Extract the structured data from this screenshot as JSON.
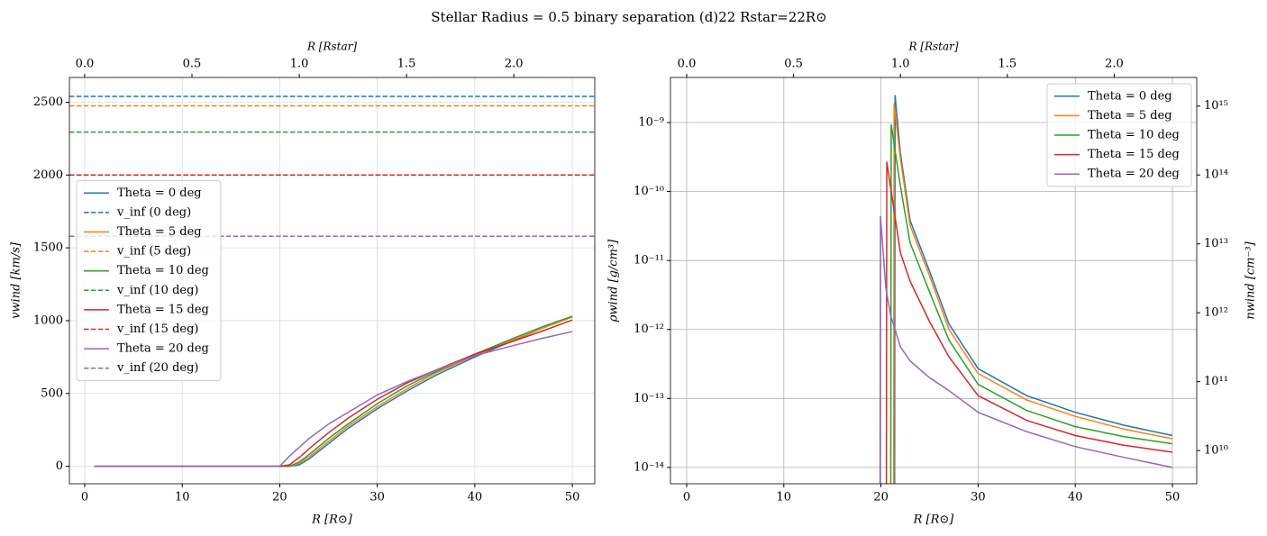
{
  "title": "Stellar Radius = 0.5 binary separation (d)22  Rstar=22R⊙",
  "chart_data": [
    {
      "type": "line",
      "xlabel": "R [R⊙]",
      "ylabel": "vwind [km/s]",
      "x2label": "R [Rstar]",
      "xlim": [
        -1.57,
        52.3
      ],
      "ylim": [
        -120,
        2670
      ],
      "x2lim": [
        -0.071,
        2.377
      ],
      "xticks": [
        0,
        10,
        20,
        30,
        40,
        50
      ],
      "yticks": [
        0,
        500,
        1000,
        1500,
        2000,
        2500
      ],
      "x2ticks": [
        {
          "value": 0,
          "label": "0.0"
        },
        0.5,
        {
          "value": 1,
          "label": "1.0"
        },
        1.5,
        {
          "value": 2,
          "label": "2.0"
        }
      ],
      "grid": true,
      "legend": "center left",
      "x": [
        1,
        20,
        21,
        22,
        23,
        25,
        27,
        30,
        33,
        36,
        40,
        44,
        47,
        50
      ],
      "series": [
        {
          "name": "Theta = 0 deg",
          "color": "#1f77b4",
          "values": [
            0,
            0,
            0,
            10,
            50,
            155,
            260,
            395,
            515,
            625,
            750,
            865,
            950,
            1030
          ]
        },
        {
          "name": "v_inf (0 deg)",
          "color": "#1f77b4",
          "linestyle": "dashed",
          "hline": 2540
        },
        {
          "name": "Theta = 5 deg",
          "color": "#ff7f0e",
          "values": [
            0,
            0,
            0,
            20,
            65,
            170,
            275,
            410,
            530,
            640,
            760,
            870,
            950,
            1025
          ]
        },
        {
          "name": "v_inf (5 deg)",
          "color": "#ff7f0e",
          "linestyle": "dashed",
          "hline": 2475
        },
        {
          "name": "Theta = 10 deg",
          "color": "#2ca02c",
          "values": [
            0,
            0,
            0,
            30,
            80,
            190,
            290,
            430,
            550,
            650,
            770,
            880,
            960,
            1030
          ]
        },
        {
          "name": "v_inf (10 deg)",
          "color": "#2ca02c",
          "linestyle": "dashed",
          "hline": 2295
        },
        {
          "name": "Theta = 15 deg",
          "color": "#d62728",
          "values": [
            0,
            0,
            10,
            60,
            120,
            230,
            330,
            460,
            570,
            660,
            770,
            860,
            930,
            1005
          ]
        },
        {
          "name": "v_inf (15 deg)",
          "color": "#d62728",
          "linestyle": "dashed",
          "hline": 2000
        },
        {
          "name": "Theta = 20 deg",
          "color": "#9467bd",
          "values": [
            0,
            0,
            70,
            130,
            190,
            290,
            370,
            490,
            580,
            660,
            760,
            830,
            880,
            925
          ]
        },
        {
          "name": "v_inf (20 deg)",
          "color": "#9467bd",
          "linestyle": "dashed",
          "hline": 1580
        }
      ]
    },
    {
      "type": "line",
      "xlabel": "R [R⊙]",
      "ylabel": "ρwind [g/cm³]",
      "x2label": "R [Rstar]",
      "y2label": "nwind [cm⁻³]",
      "yscale": "log",
      "xlim": [
        -1.67,
        52.5
      ],
      "ylim": [
        5.8e-15,
        4.5e-09
      ],
      "x2lim": [
        -0.076,
        2.386
      ],
      "y2lim": [
        3300000000.0,
        2600000000000000.0
      ],
      "xticks": [
        0,
        10,
        20,
        30,
        40,
        50
      ],
      "yticks": [
        {
          "value": 1e-14,
          "label": "10⁻¹⁴"
        },
        {
          "value": 1e-13,
          "label": "10⁻¹³"
        },
        {
          "value": 1e-12,
          "label": "10⁻¹²"
        },
        {
          "value": 1e-11,
          "label": "10⁻¹¹"
        },
        {
          "value": 1e-10,
          "label": "10⁻¹⁰"
        },
        {
          "value": 1e-09,
          "label": "10⁻⁹"
        }
      ],
      "y2ticks": [
        {
          "value": 10000000000.0,
          "label": "10¹⁰"
        },
        {
          "value": 100000000000.0,
          "label": "10¹¹"
        },
        {
          "value": 1000000000000.0,
          "label": "10¹²"
        },
        {
          "value": 10000000000000.0,
          "label": "10¹³"
        },
        {
          "value": 100000000000000.0,
          "label": "10¹⁴"
        },
        {
          "value": 1000000000000000.0,
          "label": "10¹⁵"
        }
      ],
      "x2ticks": [
        {
          "value": 0,
          "label": "0.0"
        },
        0.5,
        {
          "value": 1,
          "label": "1.0"
        },
        1.5,
        {
          "value": 2,
          "label": "2.0"
        }
      ],
      "grid": true,
      "legend": "upper right",
      "series": [
        {
          "name": "Theta = 0 deg",
          "color": "#1f77b4",
          "x": [
            21.4,
            21.45,
            22,
            23,
            25,
            27,
            30,
            35,
            40,
            45,
            50
          ],
          "values": [
            1e-15,
            2.5e-09,
            3.6e-10,
            3.8e-11,
            7e-12,
            1.2e-12,
            2.7e-13,
            1.1e-13,
            6.3e-14,
            4.1e-14,
            2.9e-14
          ]
        },
        {
          "name": "Theta = 5 deg",
          "color": "#ff7f0e",
          "x": [
            21.3,
            21.35,
            22,
            23,
            25,
            27,
            30,
            35,
            40,
            45,
            50
          ],
          "values": [
            1e-15,
            1.9e-09,
            3e-10,
            3.2e-11,
            6e-12,
            1e-12,
            2.3e-13,
            9.5e-14,
            5.5e-14,
            3.6e-14,
            2.6e-14
          ]
        },
        {
          "name": "Theta = 10 deg",
          "color": "#2ca02c",
          "x": [
            21,
            21.05,
            22,
            23,
            25,
            27,
            30,
            35,
            40,
            45,
            50
          ],
          "values": [
            1e-15,
            9.4e-10,
            1.2e-10,
            1.8e-11,
            3.5e-12,
            7e-13,
            1.6e-13,
            6.7e-14,
            3.9e-14,
            2.8e-14,
            2.2e-14
          ]
        },
        {
          "name": "Theta = 15 deg",
          "color": "#d62728",
          "x": [
            20.55,
            20.6,
            22,
            23,
            25,
            27,
            30,
            35,
            40,
            45,
            50
          ],
          "values": [
            1e-15,
            2.7e-10,
            1.3e-11,
            5e-12,
            1.3e-12,
            4e-13,
            1.1e-13,
            4.8e-14,
            2.9e-14,
            2.1e-14,
            1.66e-14
          ]
        },
        {
          "name": "Theta = 20 deg",
          "color": "#9467bd",
          "x": [
            19.9,
            19.95,
            20.5,
            21,
            22,
            23,
            25,
            27,
            30,
            35,
            40,
            45,
            50
          ],
          "values": [
            1e-15,
            4.4e-11,
            4e-12,
            1.6e-12,
            5.6e-13,
            3.5e-13,
            2e-13,
            1.3e-13,
            6.3e-14,
            3.3e-14,
            2e-14,
            1.4e-14,
            1e-14
          ]
        }
      ]
    }
  ]
}
